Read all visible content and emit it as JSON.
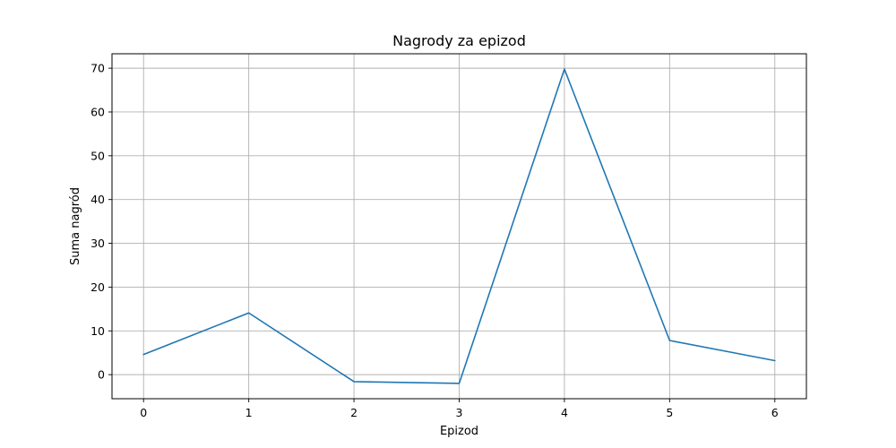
{
  "chart_data": {
    "type": "line",
    "title": "Nagrody za epizod",
    "xlabel": "Epizod",
    "ylabel": "Suma nagród",
    "x": [
      0,
      1,
      2,
      3,
      4,
      5,
      6
    ],
    "series": [
      {
        "values": [
          4.6,
          14.1,
          -1.6,
          -2.0,
          69.8,
          7.8,
          3.2
        ],
        "color": "#1f77b4"
      }
    ],
    "xlim": [
      -0.3,
      6.3
    ],
    "ylim": [
      -5.5,
      73.3
    ],
    "xticks": [
      0,
      1,
      2,
      3,
      4,
      5,
      6
    ],
    "yticks": [
      0,
      10,
      20,
      30,
      40,
      50,
      60,
      70
    ],
    "grid": true
  }
}
